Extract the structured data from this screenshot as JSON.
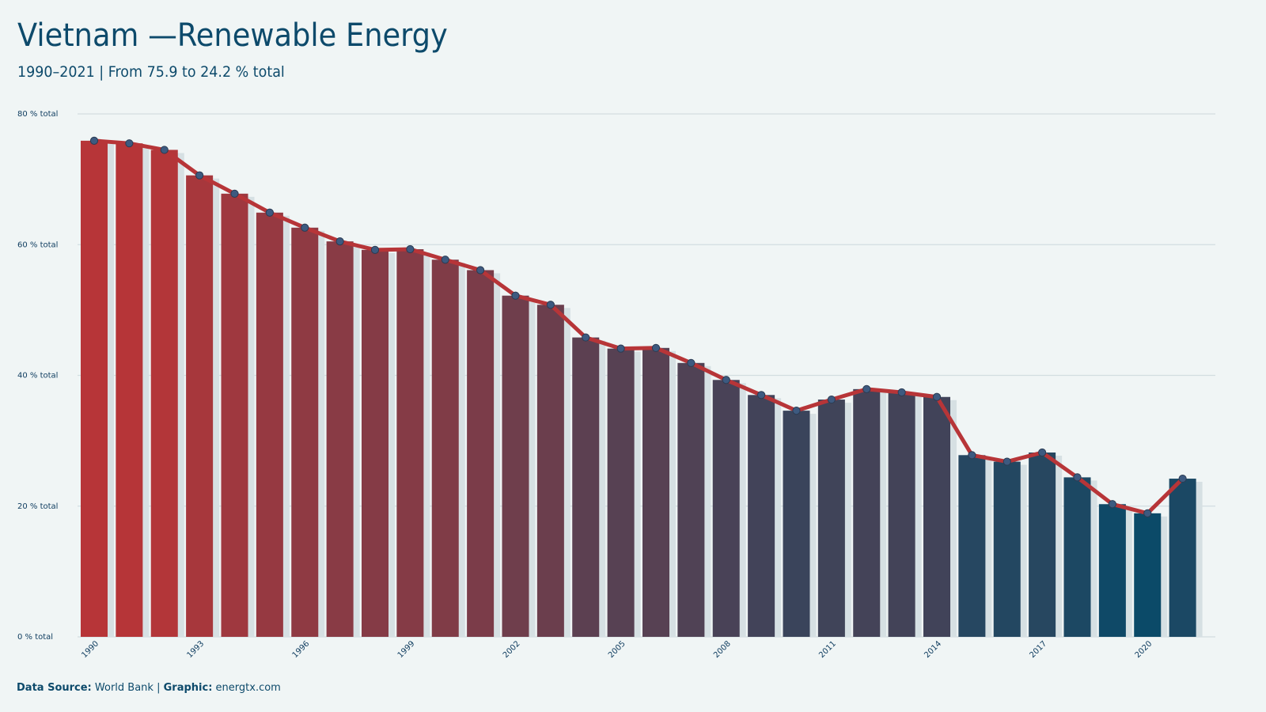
{
  "title": "Vietnam —Renewable Energy",
  "subtitle": "1990–2021 | From 75.9 to 24.2 % total",
  "caption": {
    "source_label": "Data Source:",
    "source_value": "World Bank",
    "separator": "|",
    "graphic_label": "Graphic:",
    "graphic_value": "energtx.com"
  },
  "chart_data": {
    "type": "bar",
    "x": [
      1990,
      1991,
      1992,
      1993,
      1994,
      1995,
      1996,
      1997,
      1998,
      1999,
      2000,
      2001,
      2002,
      2003,
      2004,
      2005,
      2006,
      2007,
      2008,
      2009,
      2010,
      2011,
      2012,
      2013,
      2014,
      2015,
      2016,
      2017,
      2018,
      2019,
      2020,
      2021
    ],
    "values": [
      75.9,
      75.5,
      74.5,
      70.6,
      67.8,
      64.9,
      62.6,
      60.5,
      59.2,
      59.3,
      57.7,
      56.1,
      52.2,
      50.8,
      45.8,
      44.1,
      44.2,
      41.9,
      39.3,
      37.0,
      34.6,
      36.3,
      37.9,
      37.4,
      36.7,
      27.8,
      26.8,
      28.2,
      24.4,
      20.3,
      18.9,
      24.2
    ],
    "overlay": "line-with-markers",
    "y_ticks": [
      "0 % total",
      "20 % total",
      "40 % total",
      "60 % total",
      "80 % total"
    ],
    "x_tick_labels": [
      "1990",
      "1993",
      "1996",
      "1999",
      "2002",
      "2005",
      "2008",
      "2011",
      "2014",
      "2017",
      "2020"
    ],
    "ylim": [
      0,
      80
    ],
    "grid": "horizontal",
    "colors": {
      "high": "#b73538",
      "low": "#0b4a68",
      "line": "#b73538",
      "marker_fill": "#3d5a80",
      "bar_shadow": "#d6e0e3",
      "grid": "#d2dde0"
    }
  }
}
